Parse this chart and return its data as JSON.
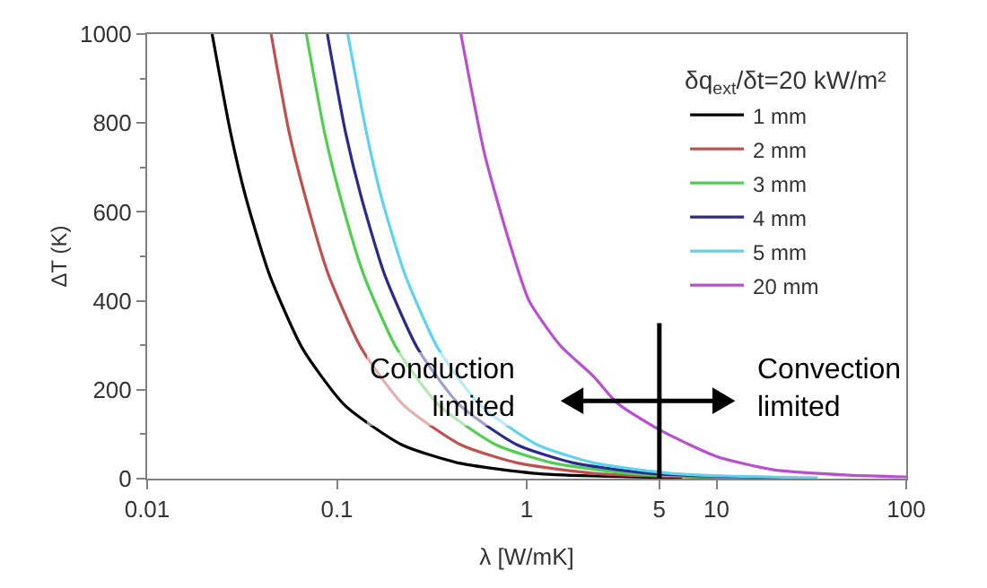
{
  "chart_data": {
    "type": "line",
    "xlabel": "λ [W/mK]",
    "ylabel": "ΔT (K)",
    "legend_title": "δq$_{ext}$/δt=20 kW/m²",
    "log": "x",
    "legend": "right",
    "marker": "none",
    "line_style": "solid",
    "xlim": [
      0.01,
      100
    ],
    "xticks": [
      0.01,
      0.1,
      1,
      5,
      10,
      100
    ],
    "ylim": [
      0,
      1000
    ],
    "yticks": [
      0,
      200,
      400,
      600,
      800,
      1000
    ],
    "series": [
      {
        "name": "1 mm",
        "color": "#000000",
        "x": [
          0.022,
          0.0275,
          0.033,
          0.044,
          0.066,
          0.11,
          0.22,
          0.44,
          1.1,
          2.2,
          6.6
        ],
        "values": [
          1000,
          779,
          635,
          460,
          292,
          165,
          76,
          35,
          12,
          6,
          2
        ]
      },
      {
        "name": "2 mm",
        "color": "#c0504d",
        "x": [
          0.045,
          0.056,
          0.068,
          0.09,
          0.135,
          0.225,
          0.45,
          0.9,
          2.25,
          4.5,
          13.5
        ],
        "values": [
          1000,
          779,
          635,
          460,
          292,
          165,
          76,
          35,
          12,
          6,
          2
        ]
      },
      {
        "name": "3 mm",
        "color": "#4fcf4f",
        "x": [
          0.069,
          0.086,
          0.104,
          0.138,
          0.207,
          0.345,
          0.69,
          1.38,
          3.45,
          6.9,
          20.7
        ],
        "values": [
          1000,
          779,
          635,
          460,
          292,
          165,
          76,
          35,
          12,
          6,
          2
        ]
      },
      {
        "name": "4 mm",
        "color": "#2a2a8c",
        "x": [
          0.089,
          0.111,
          0.134,
          0.178,
          0.267,
          0.445,
          0.89,
          1.78,
          4.45,
          8.9,
          26.7
        ],
        "values": [
          1000,
          779,
          635,
          460,
          292,
          165,
          76,
          35,
          12,
          6,
          2
        ]
      },
      {
        "name": "5 mm",
        "color": "#5ed3f0",
        "x": [
          0.114,
          0.143,
          0.171,
          0.228,
          0.342,
          0.57,
          1.14,
          2.28,
          5.7,
          11.4,
          34.2
        ],
        "values": [
          1000,
          779,
          635,
          460,
          292,
          165,
          76,
          35,
          12,
          6,
          2
        ]
      },
      {
        "name": "20 mm",
        "color": "#b94fd0",
        "x": [
          0.45,
          0.6,
          0.8,
          1.03,
          1.5,
          2.25,
          3,
          5,
          10,
          20,
          50,
          100
        ],
        "values": [
          1000,
          730,
          540,
          400,
          300,
          230,
          170,
          110,
          50,
          20,
          8,
          4
        ]
      }
    ],
    "ref_lines": [
      {
        "axis": "x",
        "value": 5,
        "color": "#000000"
      }
    ],
    "annotations": [
      "Conduction limited",
      "Convection limited"
    ]
  }
}
